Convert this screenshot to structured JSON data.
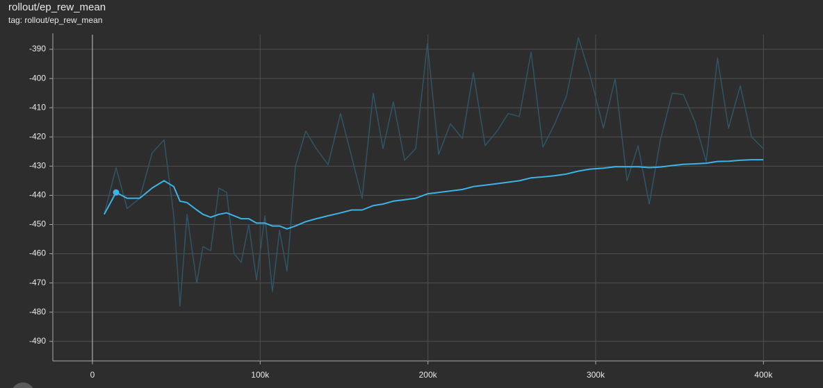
{
  "chart_data": {
    "type": "line",
    "title": "rollout/ep_rew_mean",
    "subtitle": "tag: rollout/ep_rew_mean",
    "x": [
      7000,
      14100,
      20700,
      28200,
      35600,
      42700,
      48500,
      52200,
      56400,
      62200,
      65900,
      70500,
      75400,
      80000,
      84500,
      88700,
      93200,
      97800,
      102800,
      107300,
      111500,
      116000,
      121000,
      127200,
      133400,
      140500,
      147900,
      154600,
      160800,
      167400,
      173200,
      179400,
      186100,
      192700,
      199700,
      206400,
      213400,
      220500,
      227100,
      234100,
      241200,
      247800,
      254500,
      261500,
      268500,
      275200,
      282600,
      289700,
      296700,
      304600,
      311600,
      318700,
      325300,
      331900,
      338600,
      345600,
      352300,
      359300,
      365900,
      372600,
      379200,
      386200,
      392900,
      399900
    ],
    "series": [
      {
        "color": "#3cb4e6",
        "values": [
          -446.5,
          -439,
          -441,
          -441,
          -437.5,
          -435,
          -437,
          -442,
          -442.5,
          -445,
          -446.5,
          -447.5,
          -446.5,
          -446,
          -447,
          -448,
          -448,
          -449.5,
          -449.5,
          -450.5,
          -450.5,
          -451.5,
          -450.5,
          -449,
          -448,
          -447,
          -446,
          -445,
          -445,
          -443.5,
          -443,
          -442,
          -441.5,
          -441,
          -439.5,
          -439,
          -438.5,
          -438,
          -437,
          -436.5,
          -436,
          -435.5,
          -435,
          -434,
          -433.7,
          -433.3,
          -432.7,
          -431.7,
          -431,
          -430.7,
          -430.2,
          -430.2,
          -430.2,
          -430.5,
          -430.3,
          -429.8,
          -429.4,
          -429.2,
          -429,
          -428.4,
          -428.3,
          -428,
          -427.8,
          -427.8
        ]
      },
      {
        "color": "#2f5566",
        "values": [
          -446.5,
          -430.5,
          -444.5,
          -441,
          -425.5,
          -421,
          -447,
          -478,
          -446.5,
          -470,
          -457.5,
          -459,
          -437.5,
          -439,
          -460,
          -463,
          -450,
          -469,
          -447,
          -473,
          -452,
          -466,
          -430,
          -418,
          -424,
          -429.5,
          -412,
          -427,
          -441,
          -405,
          -424,
          -408,
          -428,
          -424,
          -388,
          -426,
          -415.5,
          -420.5,
          -398,
          -423,
          -418,
          -412,
          -413,
          -391,
          -423.5,
          -416,
          -406,
          -386,
          -399,
          -417,
          -400,
          -435,
          -423,
          -443,
          -421,
          -405,
          -405.5,
          -415,
          -428.5,
          -393,
          -417,
          -402.5,
          -420,
          -424
        ]
      }
    ],
    "xlim": [
      -23600,
      435500
    ],
    "xticks": [
      0,
      {
        "value": 100000,
        "label": "100k"
      },
      {
        "value": 200000,
        "label": "200k"
      },
      {
        "value": 300000,
        "label": "300k"
      },
      {
        "value": 400000,
        "label": "400k"
      }
    ],
    "ylim": [
      -496.7,
      -385
    ],
    "yticks": [
      -390,
      -400,
      -410,
      -420,
      -430,
      -440,
      -450,
      -460,
      -470,
      -480,
      -490
    ],
    "grid": true
  }
}
